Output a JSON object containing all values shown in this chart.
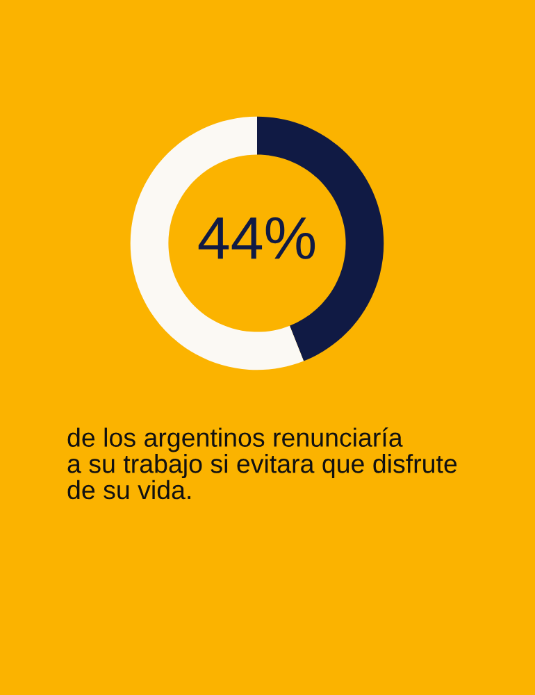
{
  "chart_data": {
    "type": "donut",
    "categories": [
      null,
      null
    ],
    "values": [
      44,
      56
    ],
    "colors": [
      "#101a44",
      "#fbf9f4"
    ],
    "value_labels": [
      "44%",
      null
    ],
    "annotations": [
      "de los argentinos renunciaría\na su trabajo si evitara que disfrute\nde su vida."
    ],
    "legend": false
  }
}
